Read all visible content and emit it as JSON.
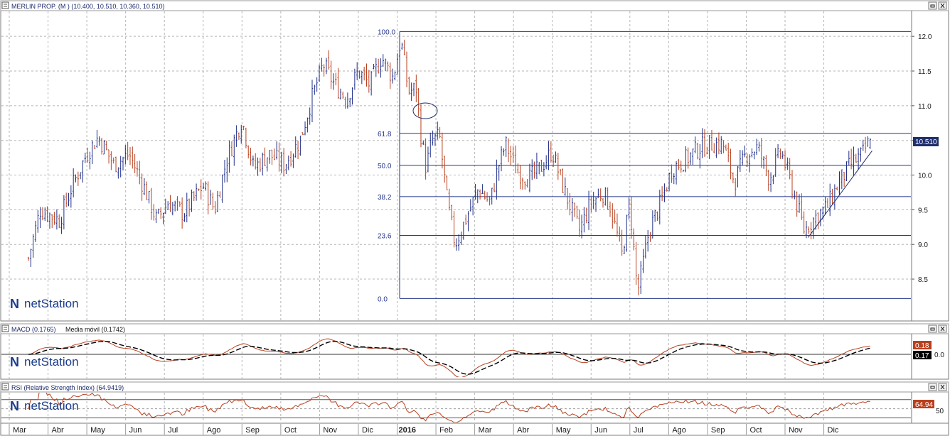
{
  "panels": {
    "price": {
      "title": "MERLIN PROP. (M ) (10.400, 10.510, 10.360, 10.510)",
      "last_value": "10.510",
      "last_value_color": "#1f2f6e"
    },
    "macd": {
      "title": "MACD (0.1765)",
      "signal_title": "Media móvil (0.1742)",
      "last_macd": "0.18",
      "last_signal": "0.17",
      "macd_color": "#b8401e",
      "signal_color": "#000000"
    },
    "rsi": {
      "title": "RSI (Relative Strength Index) (64.9419)",
      "last_value": "64.94",
      "rsi_color": "#b8401e"
    }
  },
  "brand": {
    "name": "netStation"
  },
  "icons": {
    "window_restore": "restore-icon",
    "window_close": "close-icon"
  },
  "chart_data": [
    {
      "type": "candlestick",
      "title": "MERLIN PROP. (M ) (10.400, 10.510, 10.360, 10.510)",
      "ylim": [
        8.05,
        12.35
      ],
      "y_ticks": [
        "12.0",
        "11.5",
        "11.0",
        "10.5",
        "10.0",
        "9.5",
        "9.0",
        "8.5"
      ],
      "up_color": "#1f2f8a",
      "down_color": "#b8401e",
      "months": [
        "Mar",
        "Abr",
        "May",
        "Jun",
        "Jul",
        "Ago",
        "Sep",
        "Oct",
        "Nov",
        "Dic",
        "2016",
        "Feb",
        "Mar",
        "Abr",
        "May",
        "Jun",
        "Jul",
        "Ago",
        "Sep",
        "Oct",
        "Nov",
        "Dic"
      ],
      "fibonacci": {
        "high": 12.07,
        "low": 8.22,
        "levels": [
          {
            "label": "100.0",
            "value": 12.07
          },
          {
            "label": "61.8",
            "value": 10.6
          },
          {
            "label": "50.0",
            "value": 10.14
          },
          {
            "label": "38.2",
            "value": 9.69
          },
          {
            "label": "23.6",
            "value": 9.13
          },
          {
            "label": "0.0",
            "value": 8.22
          }
        ]
      },
      "trendline": {
        "from_value": 9.1,
        "to_value": 10.35
      },
      "anchors": [
        {
          "m": 0,
          "v": 8.8
        },
        {
          "m": 0.3,
          "v": 9.5
        },
        {
          "m": 0.8,
          "v": 9.35
        },
        {
          "m": 1.1,
          "v": 9.8
        },
        {
          "m": 1.5,
          "v": 10.3
        },
        {
          "m": 1.8,
          "v": 10.55
        },
        {
          "m": 2.2,
          "v": 10.15
        },
        {
          "m": 2.6,
          "v": 10.3
        },
        {
          "m": 3.0,
          "v": 9.8
        },
        {
          "m": 3.3,
          "v": 9.35
        },
        {
          "m": 3.6,
          "v": 9.6
        },
        {
          "m": 4.0,
          "v": 9.45
        },
        {
          "m": 4.5,
          "v": 9.85
        },
        {
          "m": 4.8,
          "v": 9.5
        },
        {
          "m": 5.1,
          "v": 10.2
        },
        {
          "m": 5.5,
          "v": 10.8
        },
        {
          "m": 5.8,
          "v": 10.1
        },
        {
          "m": 6.2,
          "v": 10.3
        },
        {
          "m": 6.6,
          "v": 10.15
        },
        {
          "m": 7.0,
          "v": 10.5
        },
        {
          "m": 7.3,
          "v": 11.1
        },
        {
          "m": 7.6,
          "v": 11.6
        },
        {
          "m": 7.9,
          "v": 11.3
        },
        {
          "m": 8.2,
          "v": 11.1
        },
        {
          "m": 8.5,
          "v": 11.5
        },
        {
          "m": 8.8,
          "v": 11.3
        },
        {
          "m": 9.1,
          "v": 11.7
        },
        {
          "m": 9.4,
          "v": 11.4
        },
        {
          "m": 9.6,
          "v": 11.95
        },
        {
          "m": 9.8,
          "v": 11.2
        },
        {
          "m": 10.0,
          "v": 11.25
        },
        {
          "m": 10.1,
          "v": 10.65
        },
        {
          "m": 10.25,
          "v": 10.1
        },
        {
          "m": 10.4,
          "v": 10.5
        },
        {
          "m": 10.6,
          "v": 10.55
        },
        {
          "m": 10.8,
          "v": 9.6
        },
        {
          "m": 11.0,
          "v": 9.0
        },
        {
          "m": 11.3,
          "v": 9.4
        },
        {
          "m": 11.6,
          "v": 9.8
        },
        {
          "m": 11.9,
          "v": 9.6
        },
        {
          "m": 12.1,
          "v": 10.1
        },
        {
          "m": 12.3,
          "v": 10.45
        },
        {
          "m": 12.6,
          "v": 10.05
        },
        {
          "m": 12.9,
          "v": 9.95
        },
        {
          "m": 13.2,
          "v": 10.1
        },
        {
          "m": 13.5,
          "v": 10.35
        },
        {
          "m": 13.8,
          "v": 9.8
        },
        {
          "m": 14.2,
          "v": 9.2
        },
        {
          "m": 14.5,
          "v": 9.6
        },
        {
          "m": 14.8,
          "v": 9.75
        },
        {
          "m": 15.0,
          "v": 9.55
        },
        {
          "m": 15.3,
          "v": 8.85
        },
        {
          "m": 15.5,
          "v": 9.6
        },
        {
          "m": 15.7,
          "v": 8.3
        },
        {
          "m": 16.0,
          "v": 9.2
        },
        {
          "m": 16.3,
          "v": 9.6
        },
        {
          "m": 16.6,
          "v": 10.1
        },
        {
          "m": 17.0,
          "v": 10.25
        },
        {
          "m": 17.3,
          "v": 10.4
        },
        {
          "m": 17.6,
          "v": 10.45
        },
        {
          "m": 17.9,
          "v": 10.45
        },
        {
          "m": 18.2,
          "v": 9.9
        },
        {
          "m": 18.5,
          "v": 10.3
        },
        {
          "m": 18.8,
          "v": 10.4
        },
        {
          "m": 19.1,
          "v": 9.95
        },
        {
          "m": 19.4,
          "v": 10.35
        },
        {
          "m": 19.7,
          "v": 9.8
        },
        {
          "m": 20.0,
          "v": 9.2
        },
        {
          "m": 20.3,
          "v": 9.4
        },
        {
          "m": 20.6,
          "v": 9.55
        },
        {
          "m": 20.9,
          "v": 9.9
        },
        {
          "m": 21.2,
          "v": 10.15
        },
        {
          "m": 21.5,
          "v": 10.3
        },
        {
          "m": 21.7,
          "v": 10.51
        }
      ]
    },
    {
      "type": "line",
      "title": "MACD (0.1765)",
      "series": [
        {
          "name": "MACD (0.1765)",
          "last": 0.18
        },
        {
          "name": "Media móvil (0.1742)",
          "last": 0.17
        }
      ],
      "y_ticks": [
        "0.0"
      ],
      "ylim": [
        -0.45,
        0.45
      ]
    },
    {
      "type": "line",
      "title": "RSI (Relative Strength Index) (64.9419)",
      "series": [
        {
          "name": "RSI (Relative Strength Index) (64.9419)",
          "last": 64.94
        }
      ],
      "y_ticks": [
        "50"
      ],
      "ylim": [
        20,
        85
      ]
    }
  ]
}
